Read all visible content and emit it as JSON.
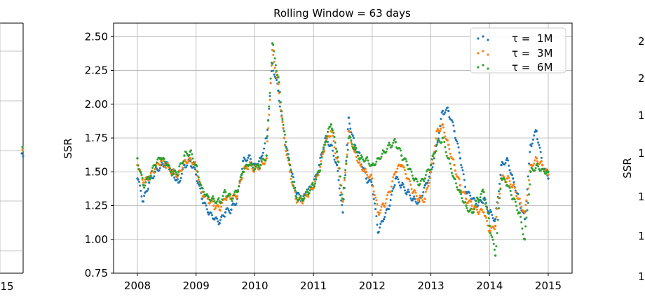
{
  "chart_data": [
    {
      "type": "scatter",
      "title": "Rolling Window = 63 days",
      "xlabel": "",
      "ylabel": "SSR",
      "xlim": [
        2008,
        2015
      ],
      "ylim": [
        0.75,
        2.6
      ],
      "x_ticks": [
        "2008",
        "2009",
        "2010",
        "2011",
        "2012",
        "2013",
        "2014",
        "2015"
      ],
      "y_ticks": [
        "0.75",
        "1.00",
        "1.25",
        "1.50",
        "1.75",
        "2.00",
        "2.25",
        "2.50"
      ],
      "grid": true,
      "legend_position": "top-right",
      "series": [
        {
          "name": "τ =  1M",
          "color": "#1f77b4",
          "x": [
            2008.0,
            2008.1,
            2008.2,
            2008.3,
            2008.4,
            2008.5,
            2008.6,
            2008.7,
            2008.8,
            2008.9,
            2009.0,
            2009.1,
            2009.2,
            2009.3,
            2009.4,
            2009.5,
            2009.6,
            2009.7,
            2009.8,
            2009.9,
            2010.0,
            2010.1,
            2010.2,
            2010.3,
            2010.4,
            2010.5,
            2010.6,
            2010.7,
            2010.8,
            2010.9,
            2011.0,
            2011.1,
            2011.2,
            2011.3,
            2011.4,
            2011.5,
            2011.6,
            2011.7,
            2011.8,
            2011.9,
            2012.0,
            2012.1,
            2012.2,
            2012.3,
            2012.4,
            2012.5,
            2012.6,
            2012.7,
            2012.8,
            2012.9,
            2013.0,
            2013.1,
            2013.2,
            2013.3,
            2013.4,
            2013.5,
            2013.6,
            2013.7,
            2013.8,
            2013.9,
            2014.0,
            2014.1,
            2014.2,
            2014.3,
            2014.4,
            2014.5,
            2014.6,
            2014.7,
            2014.8,
            2014.9,
            2015.0
          ],
          "y": [
            1.45,
            1.28,
            1.42,
            1.5,
            1.55,
            1.57,
            1.5,
            1.42,
            1.55,
            1.58,
            1.48,
            1.3,
            1.2,
            1.15,
            1.12,
            1.2,
            1.22,
            1.3,
            1.58,
            1.62,
            1.55,
            1.6,
            1.75,
            2.3,
            2.1,
            1.75,
            1.55,
            1.35,
            1.28,
            1.35,
            1.4,
            1.55,
            1.75,
            1.7,
            1.55,
            1.2,
            1.9,
            1.7,
            1.6,
            1.45,
            1.4,
            1.05,
            1.15,
            1.25,
            1.45,
            1.4,
            1.35,
            1.3,
            1.28,
            1.4,
            1.5,
            1.7,
            1.95,
            1.95,
            1.8,
            1.6,
            1.35,
            1.3,
            1.25,
            1.3,
            1.2,
            1.15,
            1.55,
            1.6,
            1.45,
            1.3,
            1.15,
            1.7,
            1.8,
            1.55,
            1.45
          ]
        },
        {
          "name": "τ =  3M",
          "color": "#ff7f0e",
          "x": [
            2008.0,
            2008.1,
            2008.2,
            2008.3,
            2008.4,
            2008.5,
            2008.6,
            2008.7,
            2008.8,
            2008.9,
            2009.0,
            2009.1,
            2009.2,
            2009.3,
            2009.4,
            2009.5,
            2009.6,
            2009.7,
            2009.8,
            2009.9,
            2010.0,
            2010.1,
            2010.2,
            2010.3,
            2010.4,
            2010.5,
            2010.6,
            2010.7,
            2010.8,
            2010.9,
            2011.0,
            2011.1,
            2011.2,
            2011.3,
            2011.4,
            2011.5,
            2011.6,
            2011.7,
            2011.8,
            2011.9,
            2012.0,
            2012.1,
            2012.2,
            2012.3,
            2012.4,
            2012.5,
            2012.6,
            2012.7,
            2012.8,
            2012.9,
            2013.0,
            2013.1,
            2013.2,
            2013.3,
            2013.4,
            2013.5,
            2013.6,
            2013.7,
            2013.8,
            2013.9,
            2014.0,
            2014.1,
            2014.2,
            2014.3,
            2014.4,
            2014.5,
            2014.6,
            2014.7,
            2014.8,
            2014.9,
            2015.0
          ],
          "y": [
            1.55,
            1.42,
            1.45,
            1.52,
            1.58,
            1.55,
            1.5,
            1.48,
            1.58,
            1.6,
            1.55,
            1.35,
            1.3,
            1.25,
            1.22,
            1.3,
            1.3,
            1.32,
            1.5,
            1.55,
            1.52,
            1.55,
            1.6,
            2.4,
            2.15,
            1.75,
            1.5,
            1.3,
            1.28,
            1.32,
            1.38,
            1.5,
            1.7,
            1.8,
            1.6,
            1.28,
            1.8,
            1.65,
            1.55,
            1.5,
            1.45,
            1.2,
            1.25,
            1.35,
            1.5,
            1.55,
            1.45,
            1.35,
            1.3,
            1.3,
            1.5,
            1.8,
            1.85,
            1.7,
            1.55,
            1.4,
            1.3,
            1.25,
            1.2,
            1.2,
            1.05,
            1.1,
            1.45,
            1.45,
            1.4,
            1.3,
            1.2,
            1.55,
            1.6,
            1.55,
            1.48
          ]
        },
        {
          "name": "τ =  6M",
          "color": "#2ca02c",
          "x": [
            2008.0,
            2008.1,
            2008.2,
            2008.3,
            2008.4,
            2008.5,
            2008.6,
            2008.7,
            2008.8,
            2008.9,
            2009.0,
            2009.1,
            2009.2,
            2009.3,
            2009.4,
            2009.5,
            2009.6,
            2009.7,
            2009.8,
            2009.9,
            2010.0,
            2010.1,
            2010.2,
            2010.3,
            2010.4,
            2010.5,
            2010.6,
            2010.7,
            2010.8,
            2010.9,
            2011.0,
            2011.1,
            2011.2,
            2011.3,
            2011.4,
            2011.5,
            2011.6,
            2011.7,
            2011.8,
            2011.9,
            2012.0,
            2012.1,
            2012.2,
            2012.3,
            2012.4,
            2012.5,
            2012.6,
            2012.7,
            2012.8,
            2012.9,
            2013.0,
            2013.1,
            2013.2,
            2013.3,
            2013.4,
            2013.5,
            2013.6,
            2013.7,
            2013.8,
            2013.9,
            2014.0,
            2014.1,
            2014.2,
            2014.3,
            2014.4,
            2014.5,
            2014.6,
            2014.7,
            2014.8,
            2014.9,
            2015.0
          ],
          "y": [
            1.6,
            1.4,
            1.45,
            1.55,
            1.6,
            1.55,
            1.48,
            1.5,
            1.62,
            1.65,
            1.55,
            1.38,
            1.32,
            1.3,
            1.28,
            1.35,
            1.3,
            1.35,
            1.5,
            1.55,
            1.52,
            1.55,
            1.62,
            2.45,
            2.2,
            1.8,
            1.55,
            1.32,
            1.3,
            1.35,
            1.4,
            1.5,
            1.72,
            1.85,
            1.65,
            1.3,
            1.75,
            1.68,
            1.6,
            1.6,
            1.55,
            1.6,
            1.65,
            1.7,
            1.72,
            1.62,
            1.55,
            1.45,
            1.4,
            1.45,
            1.55,
            1.7,
            1.75,
            1.6,
            1.45,
            1.35,
            1.25,
            1.2,
            1.3,
            1.35,
            1.1,
            0.88,
            1.45,
            1.4,
            1.3,
            1.2,
            1.0,
            1.5,
            1.55,
            1.52,
            1.5
          ]
        }
      ]
    }
  ],
  "left_partial_panel": {
    "x_ticks": [
      "15"
    ]
  },
  "right_partial_panel": {
    "ylabel": "SSR",
    "y_ticks": [
      "2",
      "2",
      "1",
      "1",
      "1",
      "1",
      "1"
    ]
  }
}
